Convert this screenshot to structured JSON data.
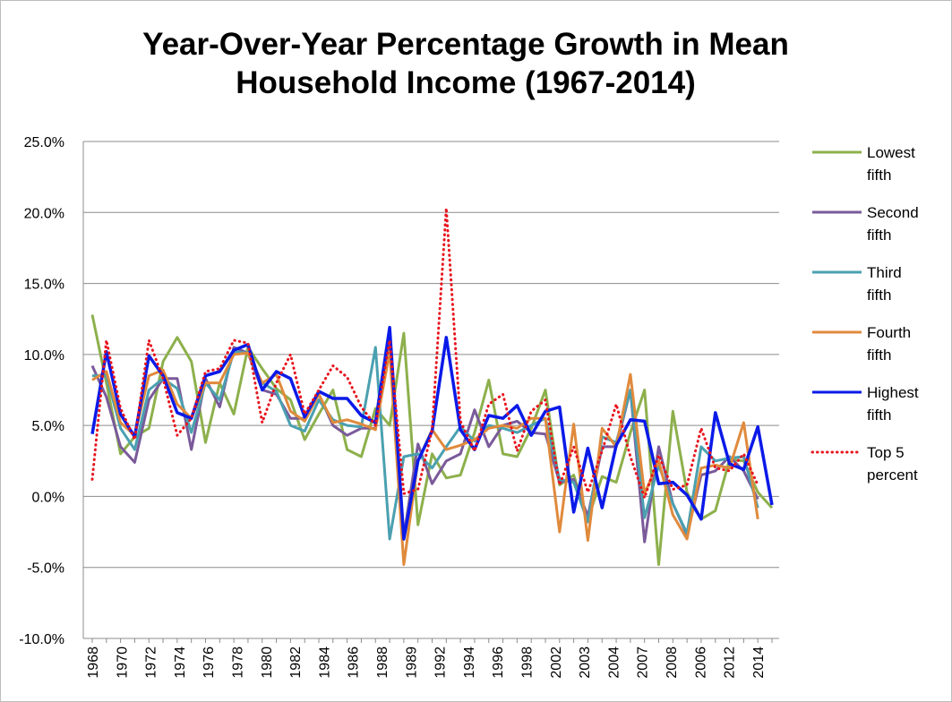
{
  "chart_data": {
    "type": "line",
    "title": "Year-Over-Year Percentage Growth in Mean Household Income (1967-2014)",
    "xlabel": "",
    "ylabel": "",
    "ylim": [
      -10,
      25
    ],
    "y_ticks": [
      "25.0%",
      "20.0%",
      "15.0%",
      "10.0%",
      "5.0%",
      "0.0%",
      "-5.0%",
      "-10.0%"
    ],
    "y_tick_values": [
      25,
      20,
      15,
      10,
      5,
      0,
      -5,
      -10
    ],
    "x_tick_labels": [
      "1968",
      "1970",
      "1972",
      "1974",
      "1976",
      "1978",
      "1980",
      "1982",
      "1984",
      "1986",
      "1988",
      "1989",
      "1992",
      "1994",
      "1996",
      "1998",
      "2002",
      "2003",
      "2004",
      "2007",
      "2008",
      "2006",
      "2012",
      "2014"
    ],
    "grid": true,
    "legend_position": "right",
    "series": [
      {
        "name": "Lowest fifth",
        "color": "#8db04c",
        "style": "solid",
        "values": [
          12.8,
          8.0,
          3.0,
          4.2,
          4.8,
          9.5,
          11.2,
          9.5,
          3.8,
          8.0,
          5.8,
          10.5,
          9.0,
          7.6,
          6.8,
          4.0,
          5.8,
          7.5,
          3.3,
          2.8,
          6.2,
          5.0,
          11.5,
          -2.0,
          3.0,
          1.3,
          1.5,
          4.5,
          8.2,
          3.0,
          2.8,
          4.8,
          7.5,
          0.8,
          1.5,
          -1.6,
          1.4,
          1.0,
          4.5,
          7.5,
          -4.8,
          6.0,
          0.3,
          -1.6,
          -1.0,
          2.6,
          2.5,
          0.3,
          -0.8
        ]
      },
      {
        "name": "Second fifth",
        "color": "#7a5a9a",
        "style": "solid",
        "values": [
          9.2,
          7.0,
          3.5,
          2.4,
          6.8,
          8.3,
          8.3,
          3.3,
          8.3,
          6.3,
          10.5,
          10.1,
          7.5,
          7.2,
          5.5,
          5.5,
          7.2,
          5.0,
          4.3,
          4.8,
          4.8,
          10.8,
          -2.8,
          3.7,
          0.9,
          2.5,
          3.0,
          6.1,
          3.5,
          5.0,
          5.3,
          4.5,
          4.4,
          1.0,
          1.2,
          -1.4,
          3.5,
          3.5,
          7.5,
          -3.2,
          3.5,
          -0.5,
          -2.7,
          1.5,
          1.8,
          2.8,
          1.8,
          -0.2
        ]
      },
      {
        "name": "Third fifth",
        "color": "#4aa0b0",
        "style": "solid",
        "values": [
          8.5,
          8.5,
          4.8,
          3.3,
          7.5,
          8.3,
          7.6,
          4.5,
          8.0,
          6.8,
          10.2,
          10.1,
          8.0,
          7.4,
          5.0,
          4.6,
          6.8,
          5.4,
          5.0,
          4.9,
          10.5,
          -3.0,
          2.8,
          3.0,
          2.0,
          3.5,
          4.9,
          3.9,
          5.0,
          4.8,
          4.5,
          5.0,
          5.5,
          1.2,
          1.0,
          -1.8,
          4.2,
          3.8,
          7.5,
          -1.5,
          2.2,
          -0.5,
          -2.6,
          3.5,
          2.5,
          2.7,
          2.8,
          -0.8
        ]
      },
      {
        "name": "Fourth fifth",
        "color": "#e08a3c",
        "style": "solid",
        "values": [
          8.2,
          8.8,
          5.2,
          4.3,
          8.5,
          8.9,
          6.5,
          5.5,
          8.0,
          8.0,
          10.0,
          10.1,
          8.0,
          8.6,
          6.0,
          5.3,
          7.2,
          5.2,
          5.4,
          5.1,
          4.7,
          10.2,
          -4.8,
          2.5,
          4.7,
          3.3,
          3.6,
          4.0,
          4.8,
          5.0,
          4.8,
          5.5,
          5.5,
          -2.5,
          5.1,
          -3.1,
          4.8,
          3.5,
          8.6,
          0.2,
          2.5,
          -1.3,
          -3.0,
          2.0,
          2.2,
          2.0,
          5.2,
          -1.6
        ]
      },
      {
        "name": "Highest fifth",
        "color": "#0a1ae8",
        "style": "solid",
        "values": [
          4.4,
          10.2,
          5.8,
          4.2,
          9.9,
          8.5,
          5.9,
          5.5,
          8.5,
          8.8,
          10.3,
          10.7,
          7.5,
          8.8,
          8.3,
          5.6,
          7.4,
          6.9,
          6.9,
          5.7,
          5.2,
          11.9,
          -3.0,
          2.5,
          4.6,
          11.2,
          4.7,
          3.3,
          5.7,
          5.5,
          6.4,
          4.3,
          6.0,
          6.3,
          -1.1,
          3.4,
          -0.8,
          3.6,
          5.4,
          5.3,
          0.9,
          1.0,
          0.1,
          -1.6,
          5.9,
          2.3,
          1.9,
          4.9,
          -0.6
        ]
      },
      {
        "name": "Top 5 percent",
        "color": "#e8141e",
        "style": "dotted",
        "values": [
          1.2,
          11.0,
          6.2,
          4.0,
          11.0,
          8.3,
          4.3,
          5.5,
          8.8,
          9.0,
          11.0,
          10.8,
          5.2,
          8.0,
          10.0,
          5.8,
          7.5,
          9.2,
          8.4,
          6.3,
          5.0,
          11.0,
          0.2,
          0.5,
          4.7,
          20.3,
          5.3,
          3.2,
          6.5,
          7.2,
          3.2,
          6.0,
          6.8,
          0.8,
          3.5,
          0.3,
          3.2,
          6.5,
          2.8,
          -0.1,
          2.9,
          0.5,
          0.8,
          4.8,
          2.0,
          1.8,
          3.0,
          0.8
        ]
      }
    ]
  }
}
